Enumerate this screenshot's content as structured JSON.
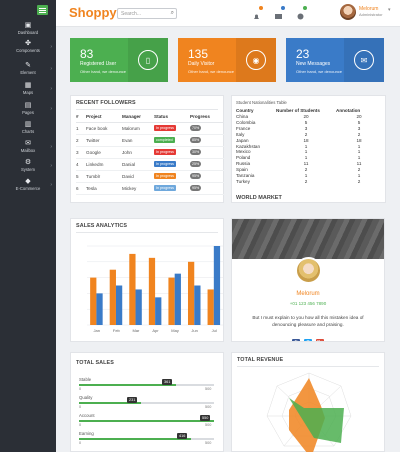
{
  "app": {
    "logo": "Shoppy",
    "search_placeholder": "Search...",
    "search_icon": "search-icon"
  },
  "user": {
    "name": "Melorum",
    "role": "Administrator"
  },
  "colors": {
    "green": "#4caf50",
    "orange": "#f0841f",
    "blue": "#3a7bc8",
    "red": "#e53935",
    "sidebar": "#2b2f36"
  },
  "sidebar": {
    "items": [
      {
        "label": "Dashboard",
        "icon": "dashboard-icon"
      },
      {
        "label": "Components",
        "icon": "puzzle-icon"
      },
      {
        "label": "Element",
        "icon": "pencil-icon"
      },
      {
        "label": "Maps",
        "icon": "map-icon"
      },
      {
        "label": "Pages",
        "icon": "file-icon"
      },
      {
        "label": "Charts",
        "icon": "bar-chart-icon"
      },
      {
        "label": "Mailbox",
        "icon": "envelope-icon"
      },
      {
        "label": "System",
        "icon": "gear-icon"
      },
      {
        "label": "E-Commerce",
        "icon": "cart-icon"
      }
    ]
  },
  "stats": [
    {
      "value": "83",
      "label": "Registered User",
      "sub": "Other hand, we denounce",
      "icon": "document-icon",
      "color": "#4caf50"
    },
    {
      "value": "135",
      "label": "Daily Visitor",
      "sub": "Other hand, we denounce",
      "icon": "eye-icon",
      "color": "#f0841f"
    },
    {
      "value": "23",
      "label": "New Messages",
      "sub": "Other hand, we denounce",
      "icon": "envelope-icon",
      "color": "#3a7bc8"
    }
  ],
  "followers": {
    "title": "RECENT FOLLOWERS",
    "columns": [
      "#",
      "Project",
      "Manager",
      "Status",
      "Progress"
    ],
    "rows": [
      {
        "id": "1",
        "project": "Face book",
        "manager": "Malorum",
        "status": "In progress",
        "status_color": "#e53935",
        "progress": "70%"
      },
      {
        "id": "2",
        "project": "Twitter",
        "manager": "Evan",
        "status": "completed",
        "status_color": "#4caf50",
        "progress": "85%"
      },
      {
        "id": "3",
        "project": "Google",
        "manager": "John",
        "status": "In progress",
        "status_color": "#e53935",
        "progress": "30%"
      },
      {
        "id": "4",
        "project": "LinkedIn",
        "manager": "Danial",
        "status": "In progress",
        "status_color": "#3a7bc8",
        "progress": "25%"
      },
      {
        "id": "5",
        "project": "Tumblr",
        "manager": "David",
        "status": "In progress",
        "status_color": "#f0841f",
        "progress": "95%"
      },
      {
        "id": "6",
        "project": "Tesla",
        "manager": "Mickey",
        "status": "In progress",
        "status_color": "#6fa8dc",
        "progress": "95%"
      }
    ]
  },
  "nationalities": {
    "caption": "Student Nationalities Table",
    "columns": [
      "Country",
      "Number of Students",
      "Annotation"
    ],
    "rows": [
      [
        "China",
        "20",
        "20"
      ],
      [
        "Colombia",
        "5",
        "5"
      ],
      [
        "France",
        "3",
        "3"
      ],
      [
        "Italy",
        "2",
        "2"
      ],
      [
        "Japan",
        "18",
        "18"
      ],
      [
        "Kazakhstan",
        "1",
        "1"
      ],
      [
        "Mexico",
        "1",
        "1"
      ],
      [
        "Poland",
        "1",
        "1"
      ],
      [
        "Russia",
        "11",
        "11"
      ],
      [
        "Spain",
        "2",
        "2"
      ],
      [
        "Tanzania",
        "1",
        "1"
      ],
      [
        "Turkey",
        "2",
        "2"
      ]
    ],
    "footer": "WORLD MARKET"
  },
  "chart_data": [
    {
      "type": "bar",
      "title": "SALES ANALYTICS",
      "categories": [
        "Jan",
        "Feb",
        "Mar",
        "Apr",
        "May",
        "Jun",
        "Jul"
      ],
      "series": [
        {
          "values": [
            60,
            70,
            90,
            85,
            60,
            80,
            45
          ],
          "color": "#f0841f"
        },
        {
          "values": [
            40,
            50,
            45,
            35,
            65,
            50,
            100
          ],
          "color": "#3a7bc8"
        }
      ],
      "ylim": [
        0,
        100
      ]
    }
  ],
  "profile": {
    "name": "Melorum",
    "phone": "+01 123 456 7890",
    "text": "But I must explain to you how all this mistaken idea of denouncing pleasure and praising.",
    "social": [
      "F",
      "T",
      "G+"
    ]
  },
  "total_sales": {
    "title": "TOTAL SALES",
    "bars": [
      {
        "label": "Stable",
        "value": "361",
        "fill": 0.72
      },
      {
        "label": "Quality",
        "value": "231",
        "fill": 0.46
      },
      {
        "label": "Account",
        "value": "550",
        "fill": 1.0
      },
      {
        "label": "Earning",
        "value": "416",
        "fill": 0.83
      }
    ],
    "min": "0",
    "max": "500"
  },
  "total_revenue": {
    "title": "TOTAL REVENUE"
  }
}
